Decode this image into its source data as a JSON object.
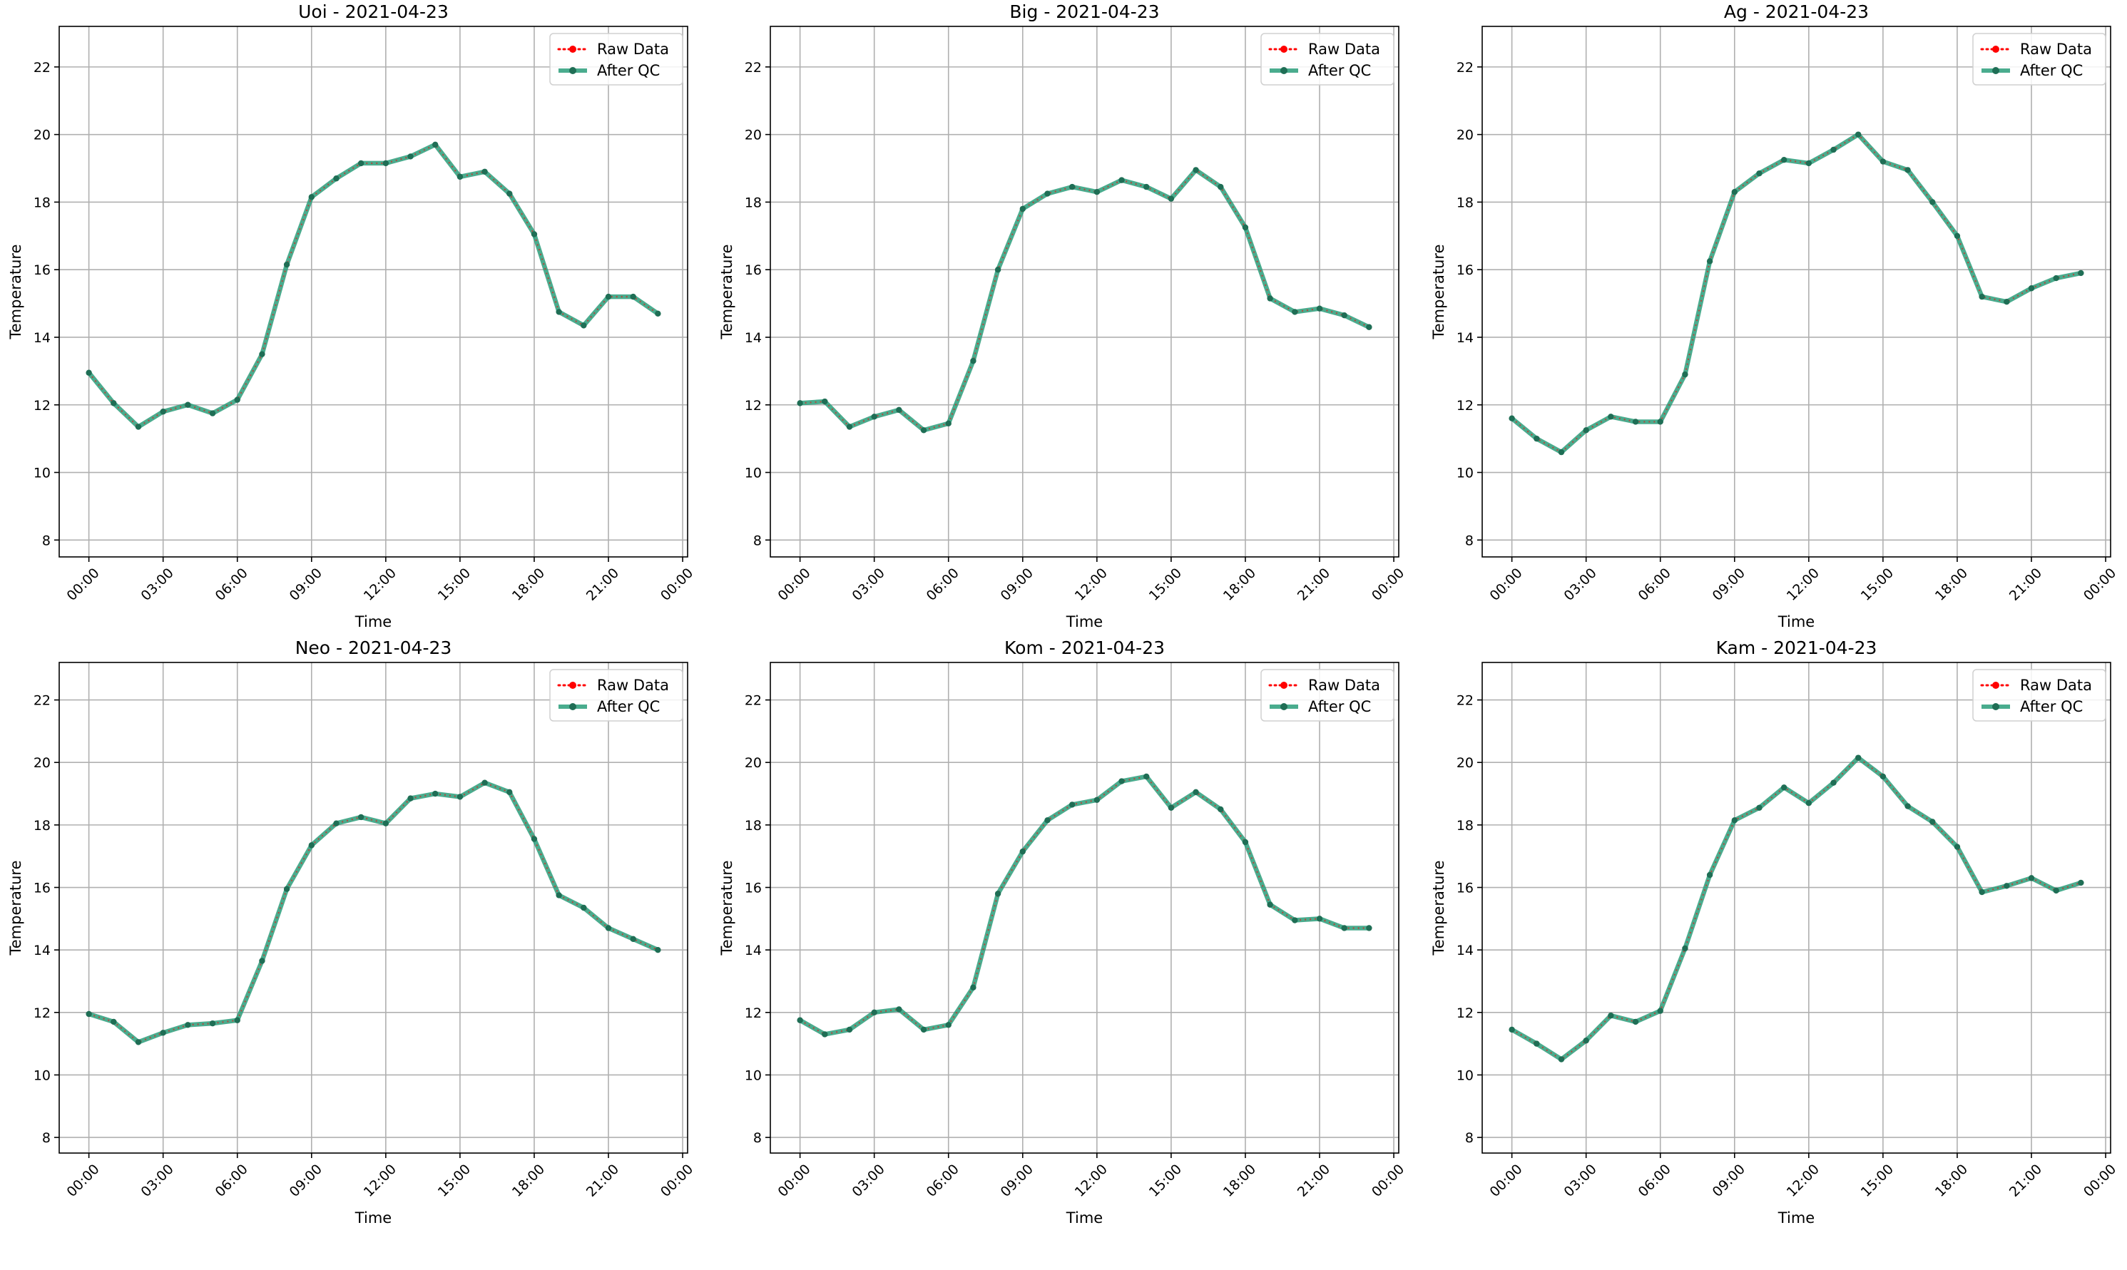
{
  "figure": {
    "colors": {
      "raw": "#ff0000",
      "qc": "#2a9d7a",
      "qc_marker": "#1f6e55",
      "grid": "#b0b0b0",
      "axes": "#000000",
      "background": "#ffffff"
    }
  },
  "chart_data": [
    {
      "type": "line",
      "title": "Uoi - 2021-04-23",
      "xlabel": "Time",
      "ylabel": "Temperature",
      "xlim": [
        -1.2,
        24.2
      ],
      "ylim": [
        7.5,
        23.2
      ],
      "xticks": [
        0,
        3,
        6,
        9,
        12,
        15,
        18,
        21,
        24
      ],
      "xtick_labels": [
        "00:00",
        "03:00",
        "06:00",
        "09:00",
        "12:00",
        "15:00",
        "18:00",
        "21:00",
        "00:00"
      ],
      "yticks": [
        8,
        10,
        12,
        14,
        16,
        18,
        20,
        22
      ],
      "ytick_labels": [
        "8",
        "10",
        "12",
        "14",
        "16",
        "18",
        "20",
        "22"
      ],
      "grid": true,
      "legend": "top-right",
      "x": [
        0,
        1,
        2,
        3,
        4,
        5,
        6,
        7,
        8,
        9,
        10,
        11,
        12,
        13,
        14,
        15,
        16,
        17,
        18,
        19,
        20,
        21,
        22,
        23
      ],
      "series": [
        {
          "name": "Raw Data",
          "style": "dotted-red",
          "values": [
            12.95,
            12.05,
            11.35,
            11.8,
            12.0,
            11.75,
            12.15,
            13.5,
            16.15,
            18.15,
            18.7,
            19.15,
            19.15,
            19.35,
            19.7,
            18.75,
            18.9,
            18.25,
            17.05,
            14.75,
            14.35,
            15.2,
            15.2,
            14.7
          ]
        },
        {
          "name": "After QC",
          "style": "solid-teal",
          "values": [
            12.95,
            12.05,
            11.35,
            11.8,
            12.0,
            11.75,
            12.15,
            13.5,
            16.15,
            18.15,
            18.7,
            19.15,
            19.15,
            19.35,
            19.7,
            18.75,
            18.9,
            18.25,
            17.05,
            14.75,
            14.35,
            15.2,
            15.2,
            14.7
          ]
        }
      ]
    },
    {
      "type": "line",
      "title": "Big - 2021-04-23",
      "xlabel": "Time",
      "ylabel": "Temperature",
      "xlim": [
        -1.2,
        24.2
      ],
      "ylim": [
        7.5,
        23.2
      ],
      "xticks": [
        0,
        3,
        6,
        9,
        12,
        15,
        18,
        21,
        24
      ],
      "xtick_labels": [
        "00:00",
        "03:00",
        "06:00",
        "09:00",
        "12:00",
        "15:00",
        "18:00",
        "21:00",
        "00:00"
      ],
      "yticks": [
        8,
        10,
        12,
        14,
        16,
        18,
        20,
        22
      ],
      "ytick_labels": [
        "8",
        "10",
        "12",
        "14",
        "16",
        "18",
        "20",
        "22"
      ],
      "grid": true,
      "legend": "top-right",
      "x": [
        0,
        1,
        2,
        3,
        4,
        5,
        6,
        7,
        8,
        9,
        10,
        11,
        12,
        13,
        14,
        15,
        16,
        17,
        18,
        19,
        20,
        21,
        22,
        23
      ],
      "series": [
        {
          "name": "Raw Data",
          "style": "dotted-red",
          "values": [
            12.05,
            12.1,
            11.35,
            11.65,
            11.85,
            11.25,
            11.45,
            13.3,
            16.0,
            17.8,
            18.25,
            18.45,
            18.3,
            18.65,
            18.45,
            18.1,
            18.95,
            18.45,
            17.25,
            15.15,
            14.75,
            14.85,
            14.65,
            14.3
          ]
        },
        {
          "name": "After QC",
          "style": "solid-teal",
          "values": [
            12.05,
            12.1,
            11.35,
            11.65,
            11.85,
            11.25,
            11.45,
            13.3,
            16.0,
            17.8,
            18.25,
            18.45,
            18.3,
            18.65,
            18.45,
            18.1,
            18.95,
            18.45,
            17.25,
            15.15,
            14.75,
            14.85,
            14.65,
            14.3
          ]
        }
      ]
    },
    {
      "type": "line",
      "title": "Ag - 2021-04-23",
      "xlabel": "Time",
      "ylabel": "Temperature",
      "xlim": [
        -1.2,
        24.2
      ],
      "ylim": [
        7.5,
        23.2
      ],
      "xticks": [
        0,
        3,
        6,
        9,
        12,
        15,
        18,
        21,
        24
      ],
      "xtick_labels": [
        "00:00",
        "03:00",
        "06:00",
        "09:00",
        "12:00",
        "15:00",
        "18:00",
        "21:00",
        "00:00"
      ],
      "yticks": [
        8,
        10,
        12,
        14,
        16,
        18,
        20,
        22
      ],
      "ytick_labels": [
        "8",
        "10",
        "12",
        "14",
        "16",
        "18",
        "20",
        "22"
      ],
      "grid": true,
      "legend": "top-right",
      "x": [
        0,
        1,
        2,
        3,
        4,
        5,
        6,
        7,
        8,
        9,
        10,
        11,
        12,
        13,
        14,
        15,
        16,
        17,
        18,
        19,
        20,
        21,
        22,
        23
      ],
      "series": [
        {
          "name": "Raw Data",
          "style": "dotted-red",
          "values": [
            11.6,
            11.0,
            10.6,
            11.25,
            11.65,
            11.5,
            11.5,
            12.9,
            16.25,
            18.3,
            18.85,
            19.25,
            19.15,
            19.55,
            20.0,
            19.2,
            18.95,
            18.0,
            17.0,
            15.2,
            15.05,
            15.45,
            15.75,
            15.9
          ]
        },
        {
          "name": "After QC",
          "style": "solid-teal",
          "values": [
            11.6,
            11.0,
            10.6,
            11.25,
            11.65,
            11.5,
            11.5,
            12.9,
            16.25,
            18.3,
            18.85,
            19.25,
            19.15,
            19.55,
            20.0,
            19.2,
            18.95,
            18.0,
            17.0,
            15.2,
            15.05,
            15.45,
            15.75,
            15.9
          ]
        }
      ]
    },
    {
      "type": "line",
      "title": "Neo - 2021-04-23",
      "xlabel": "Time",
      "ylabel": "Temperature",
      "xlim": [
        -1.2,
        24.2
      ],
      "ylim": [
        7.5,
        23.2
      ],
      "xticks": [
        0,
        3,
        6,
        9,
        12,
        15,
        18,
        21,
        24
      ],
      "xtick_labels": [
        "00:00",
        "03:00",
        "06:00",
        "09:00",
        "12:00",
        "15:00",
        "18:00",
        "21:00",
        "00:00"
      ],
      "yticks": [
        8,
        10,
        12,
        14,
        16,
        18,
        20,
        22
      ],
      "ytick_labels": [
        "8",
        "10",
        "12",
        "14",
        "16",
        "18",
        "20",
        "22"
      ],
      "grid": true,
      "legend": "top-right",
      "x": [
        0,
        1,
        2,
        3,
        4,
        5,
        6,
        7,
        8,
        9,
        10,
        11,
        12,
        13,
        14,
        15,
        16,
        17,
        18,
        19,
        20,
        21,
        22,
        23
      ],
      "series": [
        {
          "name": "Raw Data",
          "style": "dotted-red",
          "values": [
            11.95,
            11.7,
            11.05,
            11.35,
            11.6,
            11.65,
            11.75,
            13.65,
            15.95,
            17.35,
            18.05,
            18.25,
            18.05,
            18.85,
            19.0,
            18.9,
            19.35,
            19.05,
            17.55,
            15.75,
            15.35,
            14.7,
            14.35,
            14.0
          ]
        },
        {
          "name": "After QC",
          "style": "solid-teal",
          "values": [
            11.95,
            11.7,
            11.05,
            11.35,
            11.6,
            11.65,
            11.75,
            13.65,
            15.95,
            17.35,
            18.05,
            18.25,
            18.05,
            18.85,
            19.0,
            18.9,
            19.35,
            19.05,
            17.55,
            15.75,
            15.35,
            14.7,
            14.35,
            14.0
          ]
        }
      ]
    },
    {
      "type": "line",
      "title": "Kom - 2021-04-23",
      "xlabel": "Time",
      "ylabel": "Temperature",
      "xlim": [
        -1.2,
        24.2
      ],
      "ylim": [
        7.5,
        23.2
      ],
      "xticks": [
        0,
        3,
        6,
        9,
        12,
        15,
        18,
        21,
        24
      ],
      "xtick_labels": [
        "00:00",
        "03:00",
        "06:00",
        "09:00",
        "12:00",
        "15:00",
        "18:00",
        "21:00",
        "00:00"
      ],
      "yticks": [
        8,
        10,
        12,
        14,
        16,
        18,
        20,
        22
      ],
      "ytick_labels": [
        "8",
        "10",
        "12",
        "14",
        "16",
        "18",
        "20",
        "22"
      ],
      "grid": true,
      "legend": "top-right",
      "x": [
        0,
        1,
        2,
        3,
        4,
        5,
        6,
        7,
        8,
        9,
        10,
        11,
        12,
        13,
        14,
        15,
        16,
        17,
        18,
        19,
        20,
        21,
        22,
        23
      ],
      "series": [
        {
          "name": "Raw Data",
          "style": "dotted-red",
          "values": [
            11.75,
            11.3,
            11.45,
            12.0,
            12.1,
            11.45,
            11.6,
            12.8,
            15.8,
            17.15,
            18.15,
            18.65,
            18.8,
            19.4,
            19.55,
            18.55,
            19.05,
            18.5,
            17.45,
            15.45,
            14.95,
            15.0,
            14.7,
            14.7
          ]
        },
        {
          "name": "After QC",
          "style": "solid-teal",
          "values": [
            11.75,
            11.3,
            11.45,
            12.0,
            12.1,
            11.45,
            11.6,
            12.8,
            15.8,
            17.15,
            18.15,
            18.65,
            18.8,
            19.4,
            19.55,
            18.55,
            19.05,
            18.5,
            17.45,
            15.45,
            14.95,
            15.0,
            14.7,
            14.7
          ]
        }
      ]
    },
    {
      "type": "line",
      "title": "Kam - 2021-04-23",
      "xlabel": "Time",
      "ylabel": "Temperature",
      "xlim": [
        -1.2,
        24.2
      ],
      "ylim": [
        7.5,
        23.2
      ],
      "xticks": [
        0,
        3,
        6,
        9,
        12,
        15,
        18,
        21,
        24
      ],
      "xtick_labels": [
        "00:00",
        "03:00",
        "06:00",
        "09:00",
        "12:00",
        "15:00",
        "18:00",
        "21:00",
        "00:00"
      ],
      "yticks": [
        8,
        10,
        12,
        14,
        16,
        18,
        20,
        22
      ],
      "ytick_labels": [
        "8",
        "10",
        "12",
        "14",
        "16",
        "18",
        "20",
        "22"
      ],
      "grid": true,
      "legend": "top-right",
      "x": [
        0,
        1,
        2,
        3,
        4,
        5,
        6,
        7,
        8,
        9,
        10,
        11,
        12,
        13,
        14,
        15,
        16,
        17,
        18,
        19,
        20,
        21,
        22,
        23
      ],
      "series": [
        {
          "name": "Raw Data",
          "style": "dotted-red",
          "values": [
            11.45,
            11.0,
            10.5,
            11.1,
            11.9,
            11.7,
            12.05,
            14.05,
            16.4,
            18.15,
            18.55,
            19.2,
            18.7,
            19.35,
            20.15,
            19.55,
            18.6,
            18.1,
            17.3,
            15.85,
            16.05,
            16.3,
            15.9,
            16.15
          ]
        },
        {
          "name": "After QC",
          "style": "solid-teal",
          "values": [
            11.45,
            11.0,
            10.5,
            11.1,
            11.9,
            11.7,
            12.05,
            14.05,
            16.4,
            18.15,
            18.55,
            19.2,
            18.7,
            19.35,
            20.15,
            19.55,
            18.6,
            18.1,
            17.3,
            15.85,
            16.05,
            16.3,
            15.9,
            16.15
          ]
        }
      ]
    }
  ]
}
